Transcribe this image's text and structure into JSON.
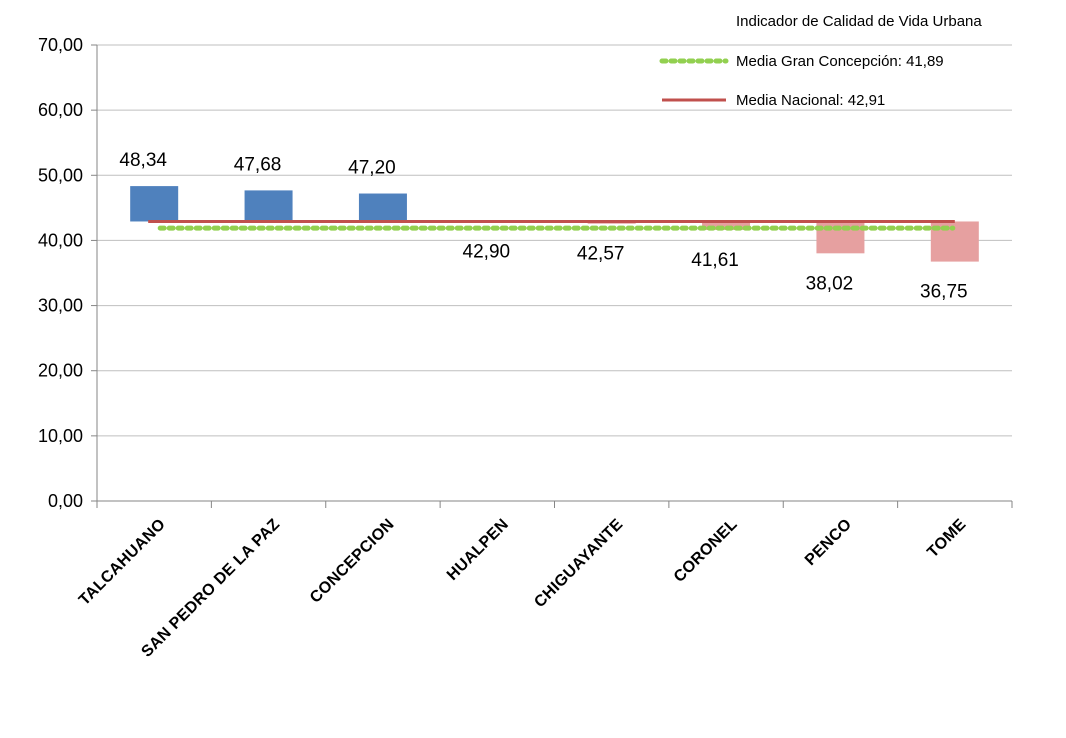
{
  "chart_data": {
    "type": "bar",
    "title": "",
    "xlabel": "",
    "ylabel": "",
    "ylim": [
      0,
      70
    ],
    "yticks": [
      "0,00",
      "10,00",
      "20,00",
      "30,00",
      "40,00",
      "50,00",
      "60,00",
      "70,00"
    ],
    "ytick_values": [
      0,
      10,
      20,
      30,
      40,
      50,
      60,
      70
    ],
    "grid": true,
    "legend_position": "top-right",
    "baseline": 42.91,
    "categories": [
      "TALCAHUANO",
      "SAN PEDRO DE LA PAZ",
      "CONCEPCION",
      "HUALPEN",
      "CHIGUAYANTE",
      "CORONEL",
      "PENCO",
      "TOME"
    ],
    "values": [
      48.34,
      47.68,
      47.2,
      42.9,
      42.57,
      41.61,
      38.02,
      36.75
    ],
    "value_labels": [
      "48,34",
      "47,68",
      "47,20",
      "42,90",
      "42,57",
      "41,61",
      "38,02",
      "36,75"
    ],
    "series": [
      {
        "name": "Indicador de Calidad de Vida Urbana",
        "values": [
          48.34,
          47.68,
          47.2,
          42.9,
          42.57,
          41.61,
          38.02,
          36.75
        ]
      }
    ],
    "reference_lines": [
      {
        "name": "Media Gran Concepción:  41,89",
        "value": 41.89,
        "style": "dotted",
        "color": "#92d050"
      },
      {
        "name": "Media Nacional: 42,91",
        "value": 42.91,
        "style": "solid",
        "color": "#c0504d"
      }
    ],
    "legend": {
      "title": "Indicador de Calidad de Vida Urbana",
      "items": [
        "Media Gran Concepción:  41,89",
        "Media Nacional: 42,91"
      ]
    },
    "colors": {
      "above": "#4f81bd",
      "below": "#e6a0a0",
      "media_gran_concepcion": "#92d050",
      "media_nacional": "#c0504d",
      "grid": "#bfbfbf",
      "axis": "#868686"
    }
  }
}
